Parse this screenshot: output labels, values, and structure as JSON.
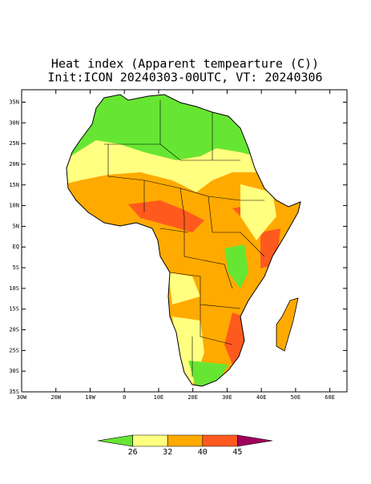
{
  "map": {
    "title": "Heat index (Apparent tempearture (C))",
    "subtitle": "Init:ICON 20240303-00UTC, VT: 20240306",
    "lonlim": [
      -30,
      65
    ],
    "latlim": [
      -35,
      38
    ],
    "lat_ticks": [
      {
        "value": 35,
        "label": "35N"
      },
      {
        "value": 30,
        "label": "30N"
      },
      {
        "value": 25,
        "label": "25N"
      },
      {
        "value": 20,
        "label": "20N"
      },
      {
        "value": 15,
        "label": "15N"
      },
      {
        "value": 10,
        "label": "10N"
      },
      {
        "value": 5,
        "label": "5N"
      },
      {
        "value": 0,
        "label": "EQ"
      },
      {
        "value": -5,
        "label": "5S"
      },
      {
        "value": -10,
        "label": "10S"
      },
      {
        "value": -15,
        "label": "15S"
      },
      {
        "value": -20,
        "label": "20S"
      },
      {
        "value": -25,
        "label": "25S"
      },
      {
        "value": -30,
        "label": "30S"
      },
      {
        "value": -35,
        "label": "35S"
      }
    ],
    "lon_ticks": [
      {
        "value": -30,
        "label": "30W"
      },
      {
        "value": -20,
        "label": "20W"
      },
      {
        "value": -10,
        "label": "10W"
      },
      0,
      {
        "value": 10,
        "label": "10E"
      },
      {
        "value": 20,
        "label": "20E"
      },
      {
        "value": 30,
        "label": "30E"
      },
      {
        "value": 40,
        "label": "40E"
      },
      {
        "value": 50,
        "label": "50E"
      },
      {
        "value": 60,
        "label": "60E"
      }
    ],
    "colorbar": {
      "ticks": [
        26,
        32,
        40,
        45
      ],
      "colors": [
        "#66e633",
        "#ffff80",
        "#ffaa00",
        "#ff5a1e",
        "#a0005a"
      ]
    }
  }
}
